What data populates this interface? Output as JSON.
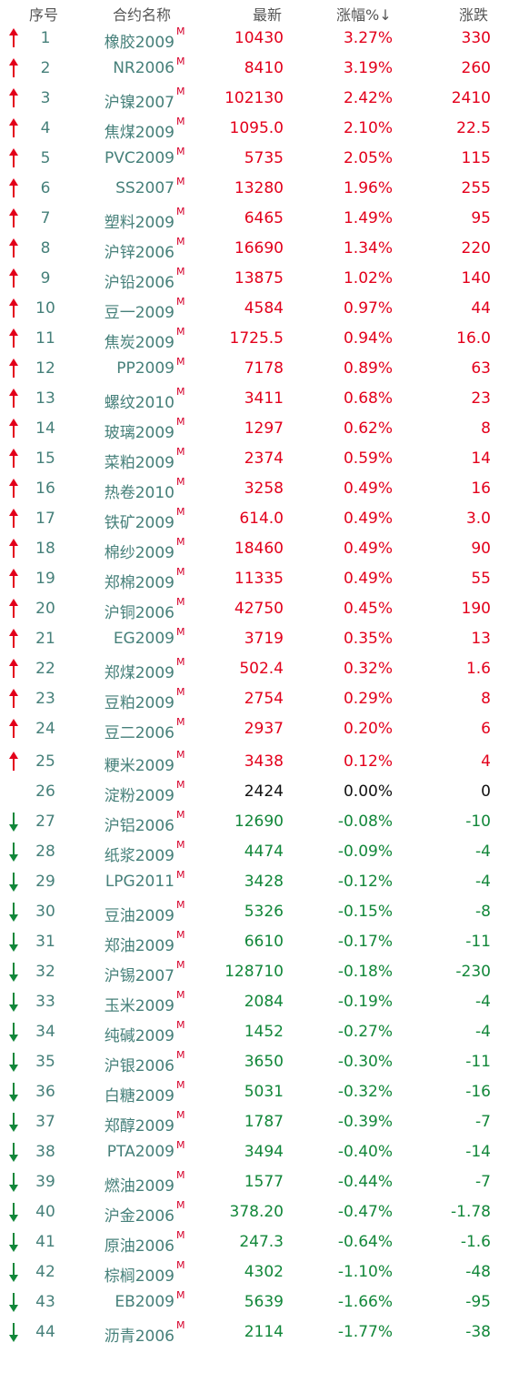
{
  "header": {
    "seq": "序号",
    "name": "合约名称",
    "last": "最新",
    "pct": "涨幅%↓",
    "chg": "涨跌"
  },
  "colors": {
    "up": "#e3001b",
    "down": "#12873a",
    "flat": "#111111",
    "name": "#46807a",
    "marker": "#d6002a"
  },
  "marker": "M",
  "rows": [
    {
      "seq": "1",
      "name": "橡胶2009",
      "last": "10430",
      "pct": "3.27%",
      "chg": "330",
      "dir": "up"
    },
    {
      "seq": "2",
      "name": "NR2006",
      "last": "8410",
      "pct": "3.19%",
      "chg": "260",
      "dir": "up"
    },
    {
      "seq": "3",
      "name": "沪镍2007",
      "last": "102130",
      "pct": "2.42%",
      "chg": "2410",
      "dir": "up"
    },
    {
      "seq": "4",
      "name": "焦煤2009",
      "last": "1095.0",
      "pct": "2.10%",
      "chg": "22.5",
      "dir": "up"
    },
    {
      "seq": "5",
      "name": "PVC2009",
      "last": "5735",
      "pct": "2.05%",
      "chg": "115",
      "dir": "up"
    },
    {
      "seq": "6",
      "name": "SS2007",
      "last": "13280",
      "pct": "1.96%",
      "chg": "255",
      "dir": "up"
    },
    {
      "seq": "7",
      "name": "塑料2009",
      "last": "6465",
      "pct": "1.49%",
      "chg": "95",
      "dir": "up"
    },
    {
      "seq": "8",
      "name": "沪锌2006",
      "last": "16690",
      "pct": "1.34%",
      "chg": "220",
      "dir": "up"
    },
    {
      "seq": "9",
      "name": "沪铅2006",
      "last": "13875",
      "pct": "1.02%",
      "chg": "140",
      "dir": "up"
    },
    {
      "seq": "10",
      "name": "豆一2009",
      "last": "4584",
      "pct": "0.97%",
      "chg": "44",
      "dir": "up"
    },
    {
      "seq": "11",
      "name": "焦炭2009",
      "last": "1725.5",
      "pct": "0.94%",
      "chg": "16.0",
      "dir": "up"
    },
    {
      "seq": "12",
      "name": "PP2009",
      "last": "7178",
      "pct": "0.89%",
      "chg": "63",
      "dir": "up"
    },
    {
      "seq": "13",
      "name": "螺纹2010",
      "last": "3411",
      "pct": "0.68%",
      "chg": "23",
      "dir": "up"
    },
    {
      "seq": "14",
      "name": "玻璃2009",
      "last": "1297",
      "pct": "0.62%",
      "chg": "8",
      "dir": "up"
    },
    {
      "seq": "15",
      "name": "菜粕2009",
      "last": "2374",
      "pct": "0.59%",
      "chg": "14",
      "dir": "up"
    },
    {
      "seq": "16",
      "name": "热卷2010",
      "last": "3258",
      "pct": "0.49%",
      "chg": "16",
      "dir": "up"
    },
    {
      "seq": "17",
      "name": "铁矿2009",
      "last": "614.0",
      "pct": "0.49%",
      "chg": "3.0",
      "dir": "up"
    },
    {
      "seq": "18",
      "name": "棉纱2009",
      "last": "18460",
      "pct": "0.49%",
      "chg": "90",
      "dir": "up"
    },
    {
      "seq": "19",
      "name": "郑棉2009",
      "last": "11335",
      "pct": "0.49%",
      "chg": "55",
      "dir": "up"
    },
    {
      "seq": "20",
      "name": "沪铜2006",
      "last": "42750",
      "pct": "0.45%",
      "chg": "190",
      "dir": "up"
    },
    {
      "seq": "21",
      "name": "EG2009",
      "last": "3719",
      "pct": "0.35%",
      "chg": "13",
      "dir": "up"
    },
    {
      "seq": "22",
      "name": "郑煤2009",
      "last": "502.4",
      "pct": "0.32%",
      "chg": "1.6",
      "dir": "up"
    },
    {
      "seq": "23",
      "name": "豆粕2009",
      "last": "2754",
      "pct": "0.29%",
      "chg": "8",
      "dir": "up"
    },
    {
      "seq": "24",
      "name": "豆二2006",
      "last": "2937",
      "pct": "0.20%",
      "chg": "6",
      "dir": "up"
    },
    {
      "seq": "25",
      "name": "粳米2009",
      "last": "3438",
      "pct": "0.12%",
      "chg": "4",
      "dir": "up"
    },
    {
      "seq": "26",
      "name": "淀粉2009",
      "last": "2424",
      "pct": "0.00%",
      "chg": "0",
      "dir": "flat"
    },
    {
      "seq": "27",
      "name": "沪铝2006",
      "last": "12690",
      "pct": "-0.08%",
      "chg": "-10",
      "dir": "down"
    },
    {
      "seq": "28",
      "name": "纸浆2009",
      "last": "4474",
      "pct": "-0.09%",
      "chg": "-4",
      "dir": "down"
    },
    {
      "seq": "29",
      "name": "LPG2011",
      "last": "3428",
      "pct": "-0.12%",
      "chg": "-4",
      "dir": "down"
    },
    {
      "seq": "30",
      "name": "豆油2009",
      "last": "5326",
      "pct": "-0.15%",
      "chg": "-8",
      "dir": "down"
    },
    {
      "seq": "31",
      "name": "郑油2009",
      "last": "6610",
      "pct": "-0.17%",
      "chg": "-11",
      "dir": "down"
    },
    {
      "seq": "32",
      "name": "沪锡2007",
      "last": "128710",
      "pct": "-0.18%",
      "chg": "-230",
      "dir": "down"
    },
    {
      "seq": "33",
      "name": "玉米2009",
      "last": "2084",
      "pct": "-0.19%",
      "chg": "-4",
      "dir": "down"
    },
    {
      "seq": "34",
      "name": "纯碱2009",
      "last": "1452",
      "pct": "-0.27%",
      "chg": "-4",
      "dir": "down"
    },
    {
      "seq": "35",
      "name": "沪银2006",
      "last": "3650",
      "pct": "-0.30%",
      "chg": "-11",
      "dir": "down"
    },
    {
      "seq": "36",
      "name": "白糖2009",
      "last": "5031",
      "pct": "-0.32%",
      "chg": "-16",
      "dir": "down"
    },
    {
      "seq": "37",
      "name": "郑醇2009",
      "last": "1787",
      "pct": "-0.39%",
      "chg": "-7",
      "dir": "down"
    },
    {
      "seq": "38",
      "name": "PTA2009",
      "last": "3494",
      "pct": "-0.40%",
      "chg": "-14",
      "dir": "down"
    },
    {
      "seq": "39",
      "name": "燃油2009",
      "last": "1577",
      "pct": "-0.44%",
      "chg": "-7",
      "dir": "down"
    },
    {
      "seq": "40",
      "name": "沪金2006",
      "last": "378.20",
      "pct": "-0.47%",
      "chg": "-1.78",
      "dir": "down"
    },
    {
      "seq": "41",
      "name": "原油2006",
      "last": "247.3",
      "pct": "-0.64%",
      "chg": "-1.6",
      "dir": "down"
    },
    {
      "seq": "42",
      "name": "棕榈2009",
      "last": "4302",
      "pct": "-1.10%",
      "chg": "-48",
      "dir": "down"
    },
    {
      "seq": "43",
      "name": "EB2009",
      "last": "5639",
      "pct": "-1.66%",
      "chg": "-95",
      "dir": "down"
    },
    {
      "seq": "44",
      "name": "沥青2006",
      "last": "2114",
      "pct": "-1.77%",
      "chg": "-38",
      "dir": "down"
    }
  ]
}
